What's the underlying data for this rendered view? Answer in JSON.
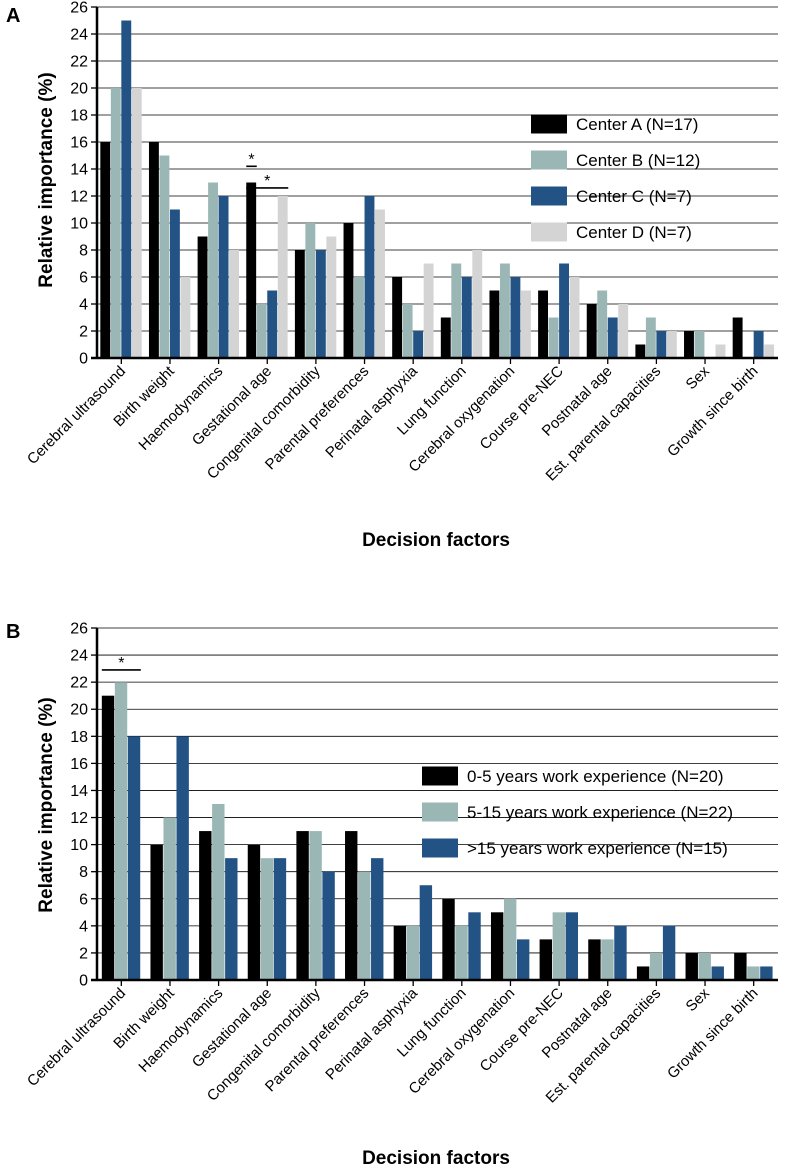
{
  "chart_data": [
    {
      "panel_label": "A",
      "type": "bar",
      "xlabel": "Decision factors",
      "ylabel": "Relative importance (%)",
      "ylim": [
        0,
        26
      ],
      "yticks": [
        "0",
        "2",
        "4",
        "6",
        "8",
        "10",
        "12",
        "14",
        "16",
        "18",
        "20",
        "22",
        "24",
        "26"
      ],
      "grid": true,
      "legend_position": "right",
      "categories": [
        "Cerebral ultrasound",
        "Birth weight",
        "Haemodynamics",
        "Gestational age",
        "Congenital comorbidity",
        "Parental preferences",
        "Perinatal asphyxia",
        "Lung function",
        "Cerebral oxygenation",
        "Course pre-NEC",
        "Postnatal age",
        "Est. parental capacities",
        "Sex",
        "Growth since birth"
      ],
      "series": [
        {
          "name": "Center A (N=17)",
          "color": "#000000",
          "values": [
            16,
            16,
            9,
            13,
            8,
            10,
            6,
            3,
            5,
            5,
            4,
            1,
            2,
            3
          ]
        },
        {
          "name": "Center B (N=12)",
          "color": "#9bb7b5",
          "values": [
            20,
            15,
            13,
            4,
            10,
            6,
            4,
            7,
            7,
            3,
            5,
            3,
            2,
            0
          ]
        },
        {
          "name": "Center C (N=7)",
          "color": "#225384",
          "values": [
            25,
            11,
            12,
            5,
            8,
            12,
            2,
            6,
            6,
            7,
            3,
            2,
            0,
            2
          ]
        },
        {
          "name": "Center D (N=7)",
          "color": "#d4d4d4",
          "values": [
            20,
            6,
            8,
            12,
            9,
            11,
            7,
            8,
            5,
            6,
            4,
            2,
            1,
            1
          ]
        }
      ],
      "annotations": [
        {
          "text": "*",
          "category": 3,
          "from_series": 0,
          "to_series": 0,
          "y": 14.2
        },
        {
          "text": "*",
          "category": 3,
          "from_series": 0,
          "to_series": 3,
          "y": 12.6
        }
      ]
    },
    {
      "panel_label": "B",
      "type": "bar",
      "xlabel": "Decision factors",
      "ylabel": "Relative importance (%)",
      "ylim": [
        0,
        26
      ],
      "yticks": [
        "0",
        "2",
        "4",
        "6",
        "8",
        "10",
        "12",
        "14",
        "16",
        "18",
        "20",
        "22",
        "24",
        "26"
      ],
      "grid": true,
      "legend_position": "right",
      "categories": [
        "Cerebral ultrasound",
        "Birth weight",
        "Haemodynamics",
        "Gestational age",
        "Congenital comorbidity",
        "Parental preferences",
        "Perinatal asphyxia",
        "Lung function",
        "Cerebral oxygenation",
        "Course pre-NEC",
        "Postnatal age",
        "Est. parental capacities",
        "Sex",
        "Growth since birth"
      ],
      "series": [
        {
          "name": "0-5 years work experience (N=20)",
          "color": "#000000",
          "values": [
            21,
            10,
            11,
            10,
            11,
            11,
            4,
            6,
            5,
            3,
            3,
            1,
            2,
            2
          ]
        },
        {
          "name": "5-15 years work experience (N=22)",
          "color": "#9bb7b5",
          "values": [
            22,
            12,
            13,
            9,
            11,
            8,
            4,
            4,
            6,
            5,
            3,
            2,
            2,
            1
          ]
        },
        {
          "name": ">15 years work experience (N=15)",
          "color": "#225384",
          "values": [
            18,
            18,
            9,
            9,
            8,
            9,
            7,
            5,
            3,
            5,
            4,
            4,
            1,
            1
          ]
        }
      ],
      "annotations": [
        {
          "text": "*",
          "category": 0,
          "from_series": 0,
          "to_series": 2,
          "y": 22.9
        }
      ]
    }
  ]
}
